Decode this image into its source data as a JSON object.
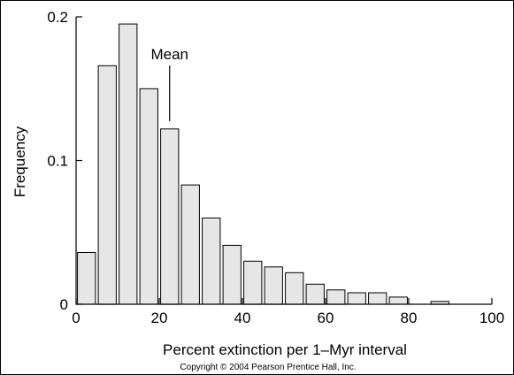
{
  "chart_data": {
    "type": "bar",
    "xlabel": "Percent extinction per 1–Myr interval",
    "ylabel": "Frequency",
    "xlim": [
      0,
      100
    ],
    "ylim": [
      0,
      0.2
    ],
    "x_ticks": [
      "0",
      "20",
      "40",
      "60",
      "80",
      "100"
    ],
    "y_ticks": [
      "0",
      "0.1",
      "0.2"
    ],
    "bin_width": 5,
    "bins": [
      {
        "x0": 0,
        "value": 0.036
      },
      {
        "x0": 5,
        "value": 0.166
      },
      {
        "x0": 10,
        "value": 0.195
      },
      {
        "x0": 15,
        "value": 0.15
      },
      {
        "x0": 20,
        "value": 0.122
      },
      {
        "x0": 25,
        "value": 0.083
      },
      {
        "x0": 30,
        "value": 0.06
      },
      {
        "x0": 35,
        "value": 0.041
      },
      {
        "x0": 40,
        "value": 0.03
      },
      {
        "x0": 45,
        "value": 0.026
      },
      {
        "x0": 50,
        "value": 0.022
      },
      {
        "x0": 55,
        "value": 0.014
      },
      {
        "x0": 60,
        "value": 0.01
      },
      {
        "x0": 65,
        "value": 0.008
      },
      {
        "x0": 70,
        "value": 0.008
      },
      {
        "x0": 75,
        "value": 0.005
      },
      {
        "x0": 85,
        "value": 0.002
      }
    ],
    "annotation": {
      "text": "Mean",
      "x": 22.5
    },
    "grid": false
  },
  "copyright": "Copyright © 2004 Pearson Prentice Hall, Inc."
}
